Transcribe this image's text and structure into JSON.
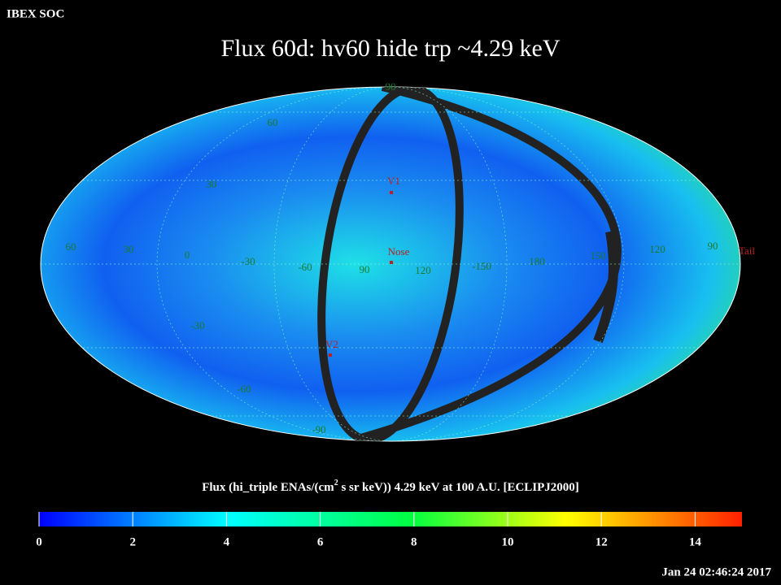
{
  "header": {
    "source": "IBEX SOC",
    "title": "Flux   60d: hv60 hide trp ~4.29 keV"
  },
  "map": {
    "longitude_labels": [
      "60",
      "30",
      "0",
      "-30",
      "-60",
      "90",
      "120",
      "-150",
      "180",
      "150",
      "120",
      "90"
    ],
    "latitude_labels": [
      "90",
      "60",
      "30",
      "-30",
      "-60",
      "-90"
    ],
    "markers": [
      "V1",
      "Nose",
      "V2",
      "Tail"
    ]
  },
  "colorbar": {
    "title": "Flux (hi_triple ENAs/(cm",
    "title_sup": "2",
    "title_rest": " s sr keV))  4.29 keV at 100 A.U. [ECLIPJ2000]",
    "lim": [
      0,
      15
    ],
    "ticks": [
      0,
      2,
      4,
      6,
      8,
      10,
      12,
      14
    ]
  },
  "footer": {
    "timestamp": "Jan 24 02:46:24 2017"
  }
}
